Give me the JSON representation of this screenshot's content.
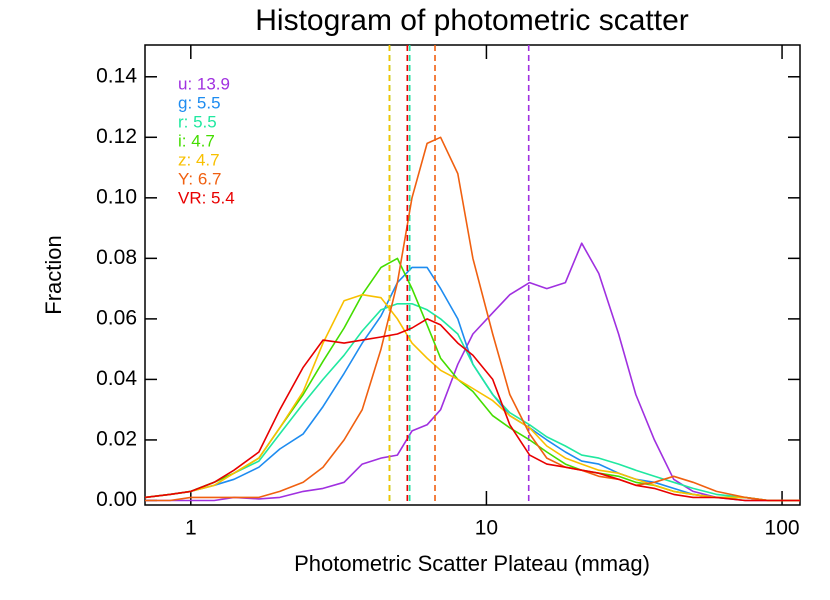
{
  "chart_data": {
    "type": "line",
    "title": "Histogram of photometric scatter",
    "x_label": "Photometric Scatter Plateau (mmag)",
    "y_label": "Fraction",
    "xlog": true,
    "xlim": [
      0.7,
      115
    ],
    "ylim": [
      -0.0015,
      0.1505
    ],
    "xticks": [
      1,
      10,
      100
    ],
    "yticks": [
      {
        "value": 0,
        "label": "0.00"
      },
      0.02,
      0.04,
      0.06,
      0.08,
      {
        "value": 0.1,
        "label": "0.10"
      },
      0.12,
      0.14
    ],
    "x": [
      0.7,
      0.85,
      1,
      1.2,
      1.4,
      1.7,
      2,
      2.4,
      2.8,
      3.3,
      3.8,
      4.4,
      5,
      5.6,
      6.3,
      7,
      8,
      9,
      10.5,
      12,
      14,
      16,
      18.5,
      21,
      24,
      28,
      32,
      37,
      43,
      50,
      60,
      75,
      90,
      115
    ],
    "series": [
      {
        "name": "u: 13.9",
        "median": 13.9,
        "color": "#a030e0",
        "values": [
          0,
          0,
          0,
          0,
          0.001,
          0.0005,
          0.001,
          0.003,
          0.004,
          0.006,
          0.012,
          0.014,
          0.015,
          0.023,
          0.025,
          0.03,
          0.045,
          0.055,
          0.062,
          0.068,
          0.072,
          0.07,
          0.072,
          0.085,
          0.075,
          0.055,
          0.035,
          0.02,
          0.007,
          0.003,
          0.001,
          0,
          0,
          0
        ]
      },
      {
        "name": "g: 5.5",
        "median": 5.5,
        "color": "#1e8cf0",
        "values": [
          0.001,
          0.002,
          0.003,
          0.005,
          0.007,
          0.011,
          0.017,
          0.022,
          0.031,
          0.042,
          0.052,
          0.061,
          0.072,
          0.077,
          0.077,
          0.07,
          0.06,
          0.045,
          0.035,
          0.028,
          0.024,
          0.02,
          0.016,
          0.013,
          0.012,
          0.009,
          0.007,
          0.006,
          0.004,
          0.002,
          0.001,
          0.001,
          0,
          0
        ]
      },
      {
        "name": "r: 5.5",
        "median": 5.5,
        "color": "#20e8a0",
        "values": [
          0.001,
          0.002,
          0.003,
          0.006,
          0.009,
          0.013,
          0.022,
          0.032,
          0.04,
          0.048,
          0.056,
          0.063,
          0.065,
          0.065,
          0.063,
          0.06,
          0.055,
          0.045,
          0.035,
          0.029,
          0.025,
          0.021,
          0.018,
          0.015,
          0.014,
          0.012,
          0.01,
          0.008,
          0.006,
          0.004,
          0.002,
          0.001,
          0,
          0
        ]
      },
      {
        "name": "i: 4.7",
        "median": 4.7,
        "color": "#44dd00",
        "values": [
          0.001,
          0.002,
          0.003,
          0.006,
          0.009,
          0.014,
          0.024,
          0.035,
          0.046,
          0.057,
          0.068,
          0.077,
          0.08,
          0.07,
          0.058,
          0.047,
          0.04,
          0.036,
          0.028,
          0.024,
          0.02,
          0.016,
          0.012,
          0.01,
          0.009,
          0.008,
          0.006,
          0.005,
          0.003,
          0.002,
          0.001,
          0.001,
          0,
          0
        ]
      },
      {
        "name": "z: 4.7",
        "median": 4.7,
        "color": "#f8c000",
        "values": [
          0.001,
          0.002,
          0.003,
          0.005,
          0.009,
          0.014,
          0.024,
          0.036,
          0.052,
          0.066,
          0.068,
          0.067,
          0.06,
          0.052,
          0.047,
          0.043,
          0.04,
          0.037,
          0.033,
          0.028,
          0.024,
          0.018,
          0.014,
          0.012,
          0.01,
          0.009,
          0.007,
          0.005,
          0.003,
          0.002,
          0.001,
          0.001,
          0,
          0
        ]
      },
      {
        "name": "Y: 6.7",
        "median": 6.7,
        "color": "#f06010",
        "values": [
          0,
          0,
          0.001,
          0.001,
          0.001,
          0.001,
          0.003,
          0.006,
          0.011,
          0.02,
          0.03,
          0.05,
          0.072,
          0.1,
          0.118,
          0.12,
          0.108,
          0.08,
          0.055,
          0.035,
          0.022,
          0.014,
          0.011,
          0.01,
          0.008,
          0.007,
          0.005,
          0.006,
          0.008,
          0.006,
          0.003,
          0.001,
          0,
          0
        ]
      },
      {
        "name": "VR: 5.4",
        "median": 5.4,
        "color": "#e80000",
        "values": [
          0.001,
          0.002,
          0.003,
          0.006,
          0.01,
          0.016,
          0.03,
          0.044,
          0.053,
          0.052,
          0.053,
          0.054,
          0.055,
          0.057,
          0.06,
          0.058,
          0.052,
          0.048,
          0.04,
          0.025,
          0.015,
          0.012,
          0.011,
          0.01,
          0.009,
          0.007,
          0.005,
          0.004,
          0.002,
          0.001,
          0.001,
          0,
          0,
          0
        ]
      }
    ]
  }
}
